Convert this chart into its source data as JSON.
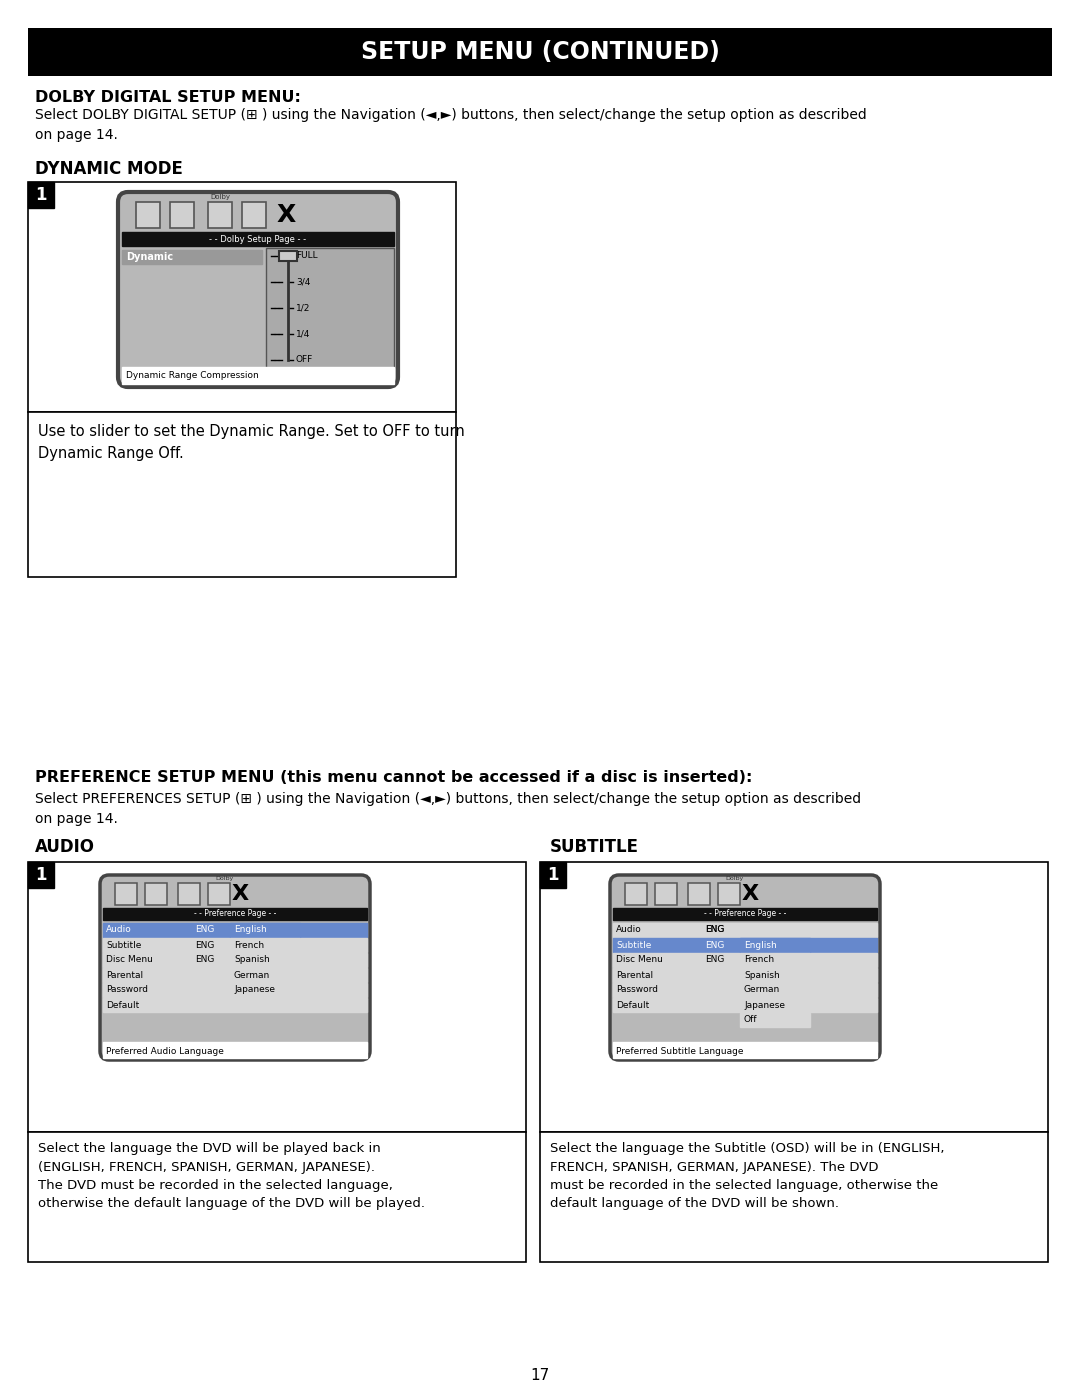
{
  "title": "SETUP MENU (CONTINUED)",
  "title_bg": "#000000",
  "title_fg": "#ffffff",
  "page_bg": "#ffffff",
  "section1_heading": "DOLBY DIGITAL SETUP MENU:",
  "section1_body": "Select DOLBY DIGITAL SETUP (⊞ ) using the Navigation (◄,►) buttons, then select/change the setup option as described\non page 14.",
  "dynamic_heading": "DYNAMIC MODE",
  "dynamic_caption": "Use to slider to set the Dynamic Range. Set to OFF to turn\nDynamic Range Off.",
  "dolby_menu_title": "- - Dolby Setup Page - -",
  "dolby_menu_item": "Dynamic",
  "dolby_slider_labels": [
    "FULL",
    "3/4",
    "1/2",
    "1/4",
    "OFF"
  ],
  "dolby_footer": "Dynamic Range Compression",
  "pref_heading": "PREFERENCE SETUP MENU (this menu cannot be accessed if a disc is inserted):",
  "pref_body": "Select PREFERENCES SETUP (⊞ ) using the Navigation (◄,►) buttons, then select/change the setup option as described\non page 14.",
  "audio_heading": "AUDIO",
  "subtitle_heading": "SUBTITLE",
  "pref_menu_title": "- - Preference Page - -",
  "audio_items": [
    "Audio",
    "Subtitle",
    "Disc Menu",
    "Parental",
    "Password",
    "Default"
  ],
  "audio_codes": [
    "ENG",
    "ENG",
    "ENG",
    "",
    "",
    ""
  ],
  "audio_selections": [
    "English",
    "French",
    "Spanish",
    "German",
    "Japanese"
  ],
  "audio_footer": "Preferred Audio Language",
  "subtitle_items": [
    "Audio",
    "Subtitle",
    "Disc Menu",
    "Parental",
    "Password",
    "Default"
  ],
  "subtitle_codes": [
    "ENG",
    "ENG",
    "ENG",
    "",
    "",
    ""
  ],
  "subtitle_sel_col1": [
    "ENG"
  ],
  "subtitle_selections": [
    "English",
    "French",
    "Spanish",
    "German",
    "Japanese",
    "Off"
  ],
  "subtitle_footer": "Preferred Subtitle Language",
  "audio_caption": "Select the language the DVD will be played back in\n(ENGLISH, FRENCH, SPANISH, GERMAN, JAPANESE).\nThe DVD must be recorded in the selected language,\notherwise the default language of the DVD will be played.",
  "subtitle_caption": "Select the language the Subtitle (OSD) will be in (ENGLISH,\nFRENCH, SPANISH, GERMAN, JAPANESE). The DVD\nmust be recorded in the selected language, otherwise the\ndefault language of the DVD will be shown.",
  "page_number": "17"
}
